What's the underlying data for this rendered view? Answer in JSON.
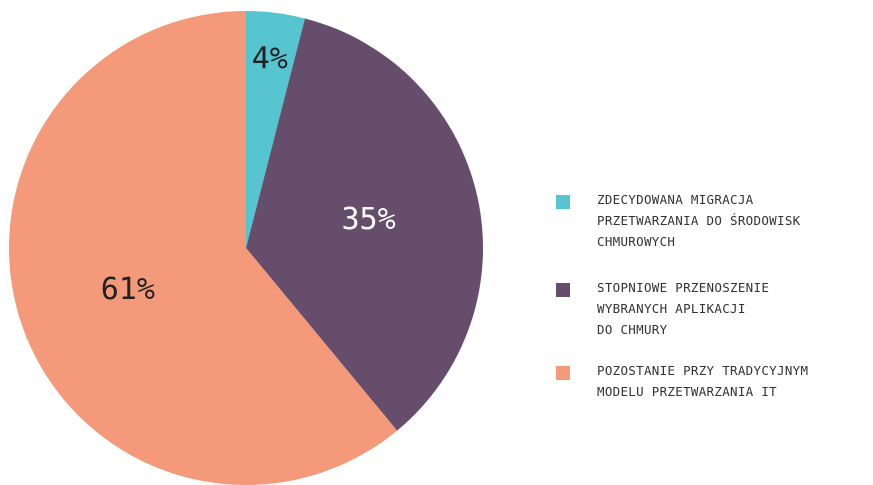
{
  "chart_data": {
    "type": "pie",
    "series": [
      {
        "name": "ZDECYDOWANA MIGRACJA\nPRZETWARZANIA DO ŚRODOWISK\nCHMUROWYCH",
        "color": "#56c5d0"
      },
      {
        "name": "STOPNIOWE PRZENOSZENIE\nWYBRANYCH APLIKACJI\nDO CHMURY",
        "color": "#664d6b"
      },
      {
        "name": "POZOSTANIE PRZY TRADYCYJNYM\nMODELU PRZETWARZANIA IT",
        "color": "#f4997a"
      }
    ],
    "values": [
      4,
      35,
      61
    ],
    "value_labels": [
      "4%",
      "35%",
      "61%"
    ],
    "legend": "right"
  }
}
